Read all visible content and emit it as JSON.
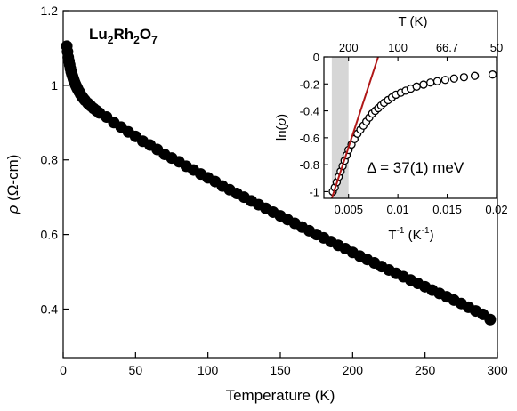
{
  "chart_data": [
    {
      "type": "scatter",
      "title": "",
      "compound_label": {
        "main": "Lu",
        "sub1": "2",
        "mid": "Rh",
        "sub2": "2",
        "end": "O",
        "sub3": "7"
      },
      "xlabel": "Temperature (K)",
      "ylabel": {
        "symbol": "ρ",
        "unit": " (Ω-cm)"
      },
      "xlim": [
        0,
        300
      ],
      "ylim": [
        0.27,
        1.2
      ],
      "xticks": [
        0,
        50,
        100,
        150,
        200,
        250,
        300
      ],
      "yticks": [
        0.4,
        0.6,
        0.8,
        1,
        1.2
      ],
      "xtick_labels": [
        "0",
        "50",
        "100",
        "150",
        "200",
        "250",
        "300"
      ],
      "ytick_labels": [
        "0.4",
        "0.6",
        "0.8",
        "1",
        "1.2"
      ],
      "marker": "filled-circle",
      "color": "#000000",
      "series": [
        {
          "x": [
            2.5,
            3,
            3.5,
            4,
            4.5,
            5,
            5.5,
            6,
            6.5,
            7,
            7.5,
            8,
            8.5,
            9,
            9.5,
            10,
            11,
            12,
            13,
            14,
            15,
            17,
            19,
            21,
            23,
            25,
            30,
            35,
            40,
            45,
            50,
            55,
            60,
            65,
            70,
            75,
            80,
            85,
            90,
            95,
            100,
            105,
            110,
            115,
            120,
            125,
            130,
            135,
            140,
            145,
            150,
            155,
            160,
            165,
            170,
            175,
            180,
            185,
            190,
            195,
            200,
            205,
            210,
            215,
            220,
            225,
            230,
            235,
            240,
            245,
            250,
            255,
            260,
            265,
            270,
            275,
            280,
            285,
            290,
            295
          ],
          "y": [
            1.105,
            1.09,
            1.075,
            1.065,
            1.055,
            1.045,
            1.037,
            1.03,
            1.024,
            1.018,
            1.012,
            1.007,
            1.002,
            0.998,
            0.994,
            0.99,
            0.983,
            0.976,
            0.97,
            0.965,
            0.96,
            0.952,
            0.945,
            0.938,
            0.932,
            0.926,
            0.915,
            0.9,
            0.888,
            0.875,
            0.863,
            0.85,
            0.84,
            0.828,
            0.815,
            0.805,
            0.795,
            0.783,
            0.773,
            0.762,
            0.752,
            0.742,
            0.73,
            0.72,
            0.71,
            0.7,
            0.69,
            0.68,
            0.67,
            0.66,
            0.65,
            0.64,
            0.63,
            0.62,
            0.61,
            0.6,
            0.591,
            0.581,
            0.571,
            0.562,
            0.552,
            0.542,
            0.533,
            0.524,
            0.514,
            0.505,
            0.496,
            0.487,
            0.478,
            0.469,
            0.46,
            0.451,
            0.442,
            0.433,
            0.424,
            0.415,
            0.405,
            0.395,
            0.386,
            0.372
          ]
        }
      ]
    },
    {
      "type": "scatter",
      "title": "",
      "xlabel": {
        "base": "T",
        "exp1": "-1",
        "mid": " (K",
        "exp2": "-1",
        "end": ")"
      },
      "ylabel": {
        "pre": "ln(",
        "symbol": "ρ",
        "post": ")"
      },
      "top_xlabel": "T (K)",
      "xlim": [
        0.0025,
        0.02
      ],
      "ylim": [
        -1.05,
        0
      ],
      "xticks": [
        0.005,
        0.01,
        0.015,
        0.02
      ],
      "xtick_labels": [
        "0.005",
        "0.01",
        "0.015",
        "0.02"
      ],
      "yticks": [
        0,
        -0.2,
        -0.4,
        -0.6,
        -0.8,
        -1
      ],
      "ytick_labels": [
        "0",
        "-0.2",
        "-0.4",
        "-0.6",
        "-0.8",
        "-1"
      ],
      "top_xticks": [
        200,
        100,
        66.7,
        50
      ],
      "top_xtick_labels": [
        "200",
        "100",
        "66.7",
        "50"
      ],
      "shaded_region": [
        0.0033,
        0.005
      ],
      "annotation": "Δ = 37(1) meV",
      "marker": "open-circle",
      "series": [
        {
          "x": [
            0.0034,
            0.0036,
            0.0038,
            0.004,
            0.0042,
            0.0044,
            0.0046,
            0.0048,
            0.005,
            0.0053,
            0.0056,
            0.0059,
            0.0062,
            0.0065,
            0.0068,
            0.0071,
            0.0074,
            0.0077,
            0.008,
            0.0083,
            0.0086,
            0.009,
            0.0094,
            0.0098,
            0.0103,
            0.0108,
            0.0113,
            0.0119,
            0.0126,
            0.0133,
            0.014,
            0.0148,
            0.0157,
            0.0167,
            0.0178,
            0.0196
          ],
          "y": [
            -1.0,
            -0.97,
            -0.93,
            -0.89,
            -0.85,
            -0.81,
            -0.77,
            -0.73,
            -0.69,
            -0.65,
            -0.61,
            -0.57,
            -0.54,
            -0.51,
            -0.48,
            -0.45,
            -0.42,
            -0.4,
            -0.38,
            -0.36,
            -0.34,
            -0.32,
            -0.3,
            -0.28,
            -0.265,
            -0.25,
            -0.235,
            -0.22,
            -0.205,
            -0.19,
            -0.18,
            -0.17,
            -0.16,
            -0.15,
            -0.14,
            -0.13
          ]
        },
        {
          "name": "",
          "style": "line",
          "color": "#b01818",
          "x": [
            0.0033,
            0.008
          ],
          "y": [
            -1.05,
            0
          ]
        }
      ]
    }
  ]
}
